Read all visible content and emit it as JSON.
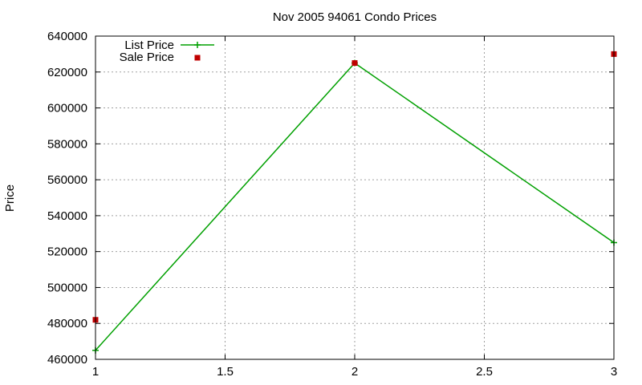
{
  "chart_data": {
    "type": "line",
    "title": "Nov 2005 94061 Condo Prices",
    "xlabel": "",
    "ylabel": "Price",
    "xlim": [
      1,
      3
    ],
    "ylim": [
      460000,
      640000
    ],
    "x_ticks": [
      "1",
      "1.5",
      "2",
      "2.5",
      "3"
    ],
    "y_ticks": [
      "460000",
      "480000",
      "500000",
      "520000",
      "540000",
      "560000",
      "580000",
      "600000",
      "620000",
      "640000"
    ],
    "grid": true,
    "legend_position": "top-left",
    "series": [
      {
        "name": "List Price",
        "style": "line-with-plus-markers",
        "color": "#00a000",
        "points": [
          [
            1,
            465000
          ],
          [
            2,
            625000
          ],
          [
            3,
            525000
          ]
        ]
      },
      {
        "name": "Sale Price",
        "style": "square-markers",
        "color": "#c00000",
        "points": [
          [
            1,
            482000
          ],
          [
            2,
            625000
          ],
          [
            3,
            630000
          ]
        ]
      }
    ]
  }
}
